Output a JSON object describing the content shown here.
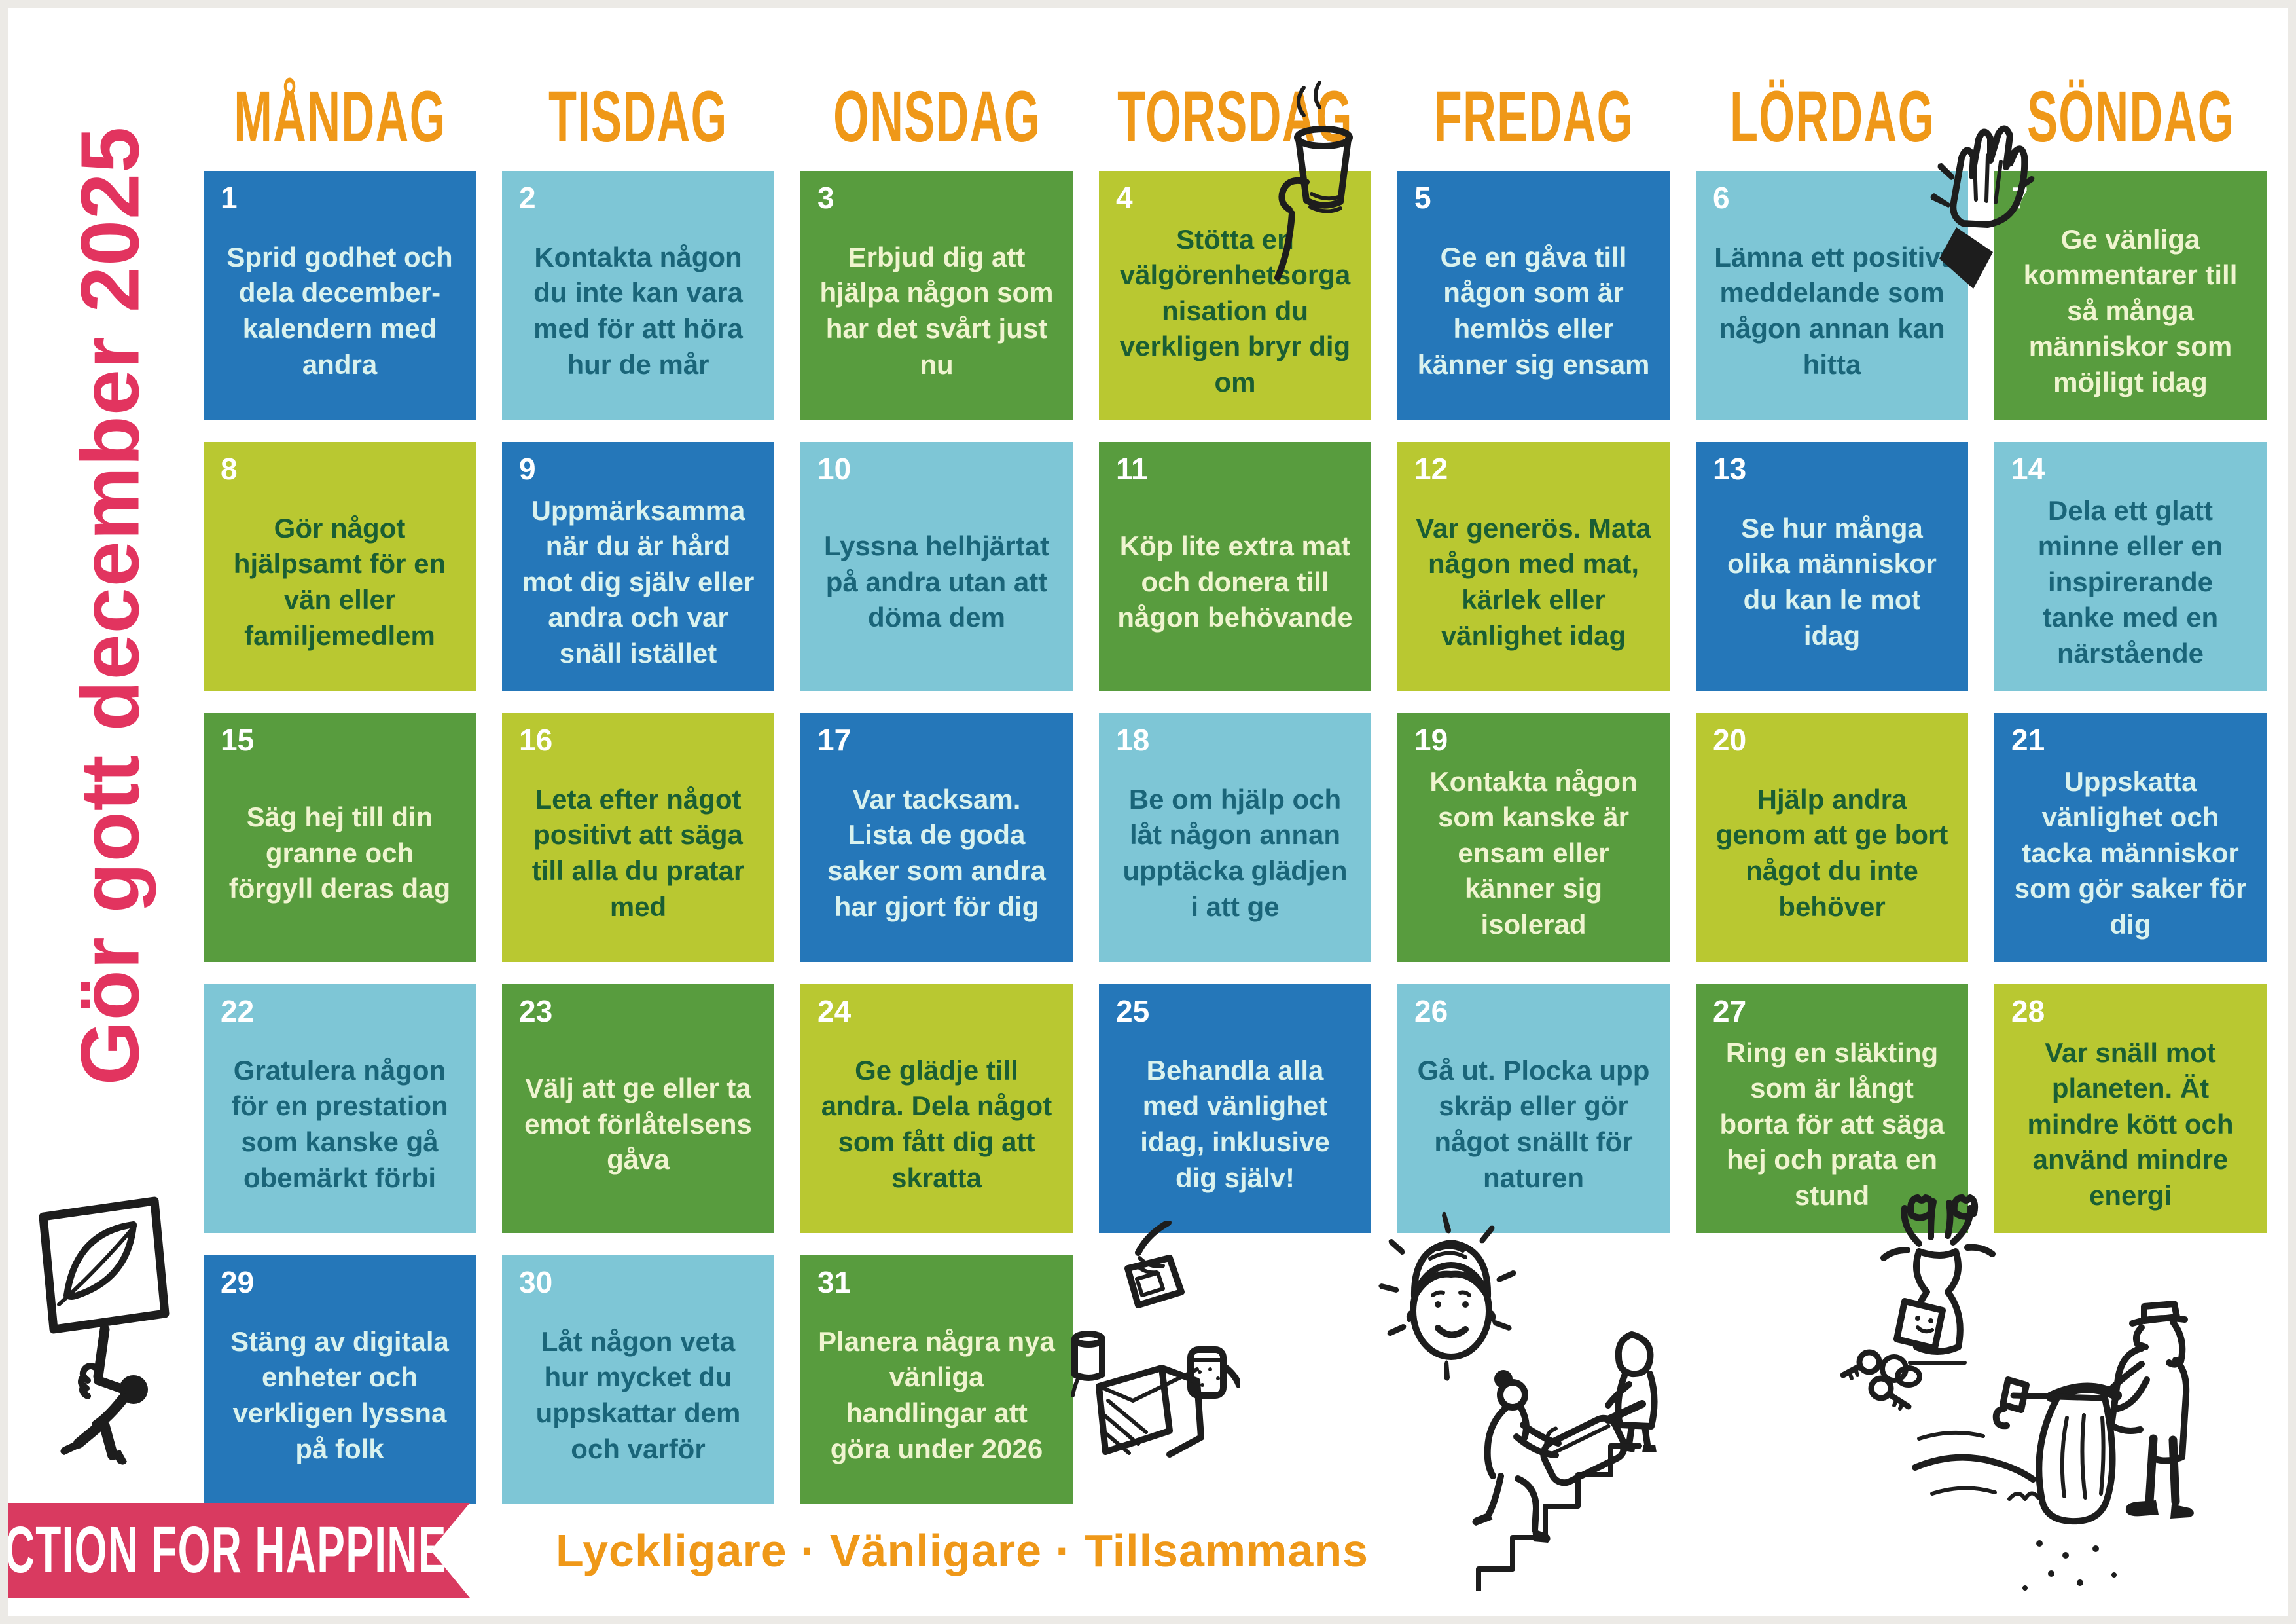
{
  "page": {
    "title_vertical": "Gör gott december 2025",
    "brand_banner": "ACTION FOR HAPPINESS",
    "tagline": "Lyckligare · Vänligare · Tillsammans"
  },
  "colors": {
    "blue": "#2577b9",
    "light_blue": "#7ec6d6",
    "green": "#589c3e",
    "lime": "#b9c831",
    "text_on_blue": "#d9f2ee",
    "text_on_light_blue": "#1a6579",
    "text_on_green": "#eff4cf",
    "text_on_lime": "#1a5e33",
    "day_number": "#ffffff",
    "orange": "#ef9818",
    "title_pink": "#e2345f",
    "banner_red": "#d93a60"
  },
  "weekdays": [
    "MÅNDAG",
    "TISDAG",
    "ONSDAG",
    "TORSDAG",
    "FREDAG",
    "LÖRDAG",
    "SÖNDAG"
  ],
  "calendar": {
    "cells": [
      {
        "day": 1,
        "color": "blue",
        "text": "Sprid godhet och dela december-kalendern med andra"
      },
      {
        "day": 2,
        "color": "light_blue",
        "text": "Kontakta någon du inte kan vara med för att höra hur de mår"
      },
      {
        "day": 3,
        "color": "green",
        "text": "Erbjud dig att hjälpa någon som har det svårt just nu"
      },
      {
        "day": 4,
        "color": "lime",
        "text": "Stötta en välgörenhetsorganisation du verkligen bryr dig om"
      },
      {
        "day": 5,
        "color": "blue",
        "text": "Ge en gåva till någon som är hemlös eller känner sig ensam"
      },
      {
        "day": 6,
        "color": "light_blue",
        "text": "Lämna ett positivt meddelande som någon annan kan hitta"
      },
      {
        "day": 7,
        "color": "green",
        "text": "Ge vänliga kommentarer till så många människor som möjligt idag"
      },
      {
        "day": 8,
        "color": "lime",
        "text": "Gör något hjälpsamt för en vän eller familjemedlem"
      },
      {
        "day": 9,
        "color": "blue",
        "text": "Uppmärksamma när du är hård mot dig själv eller andra och var snäll istället"
      },
      {
        "day": 10,
        "color": "light_blue",
        "text": "Lyssna helhjärtat på andra utan att döma dem"
      },
      {
        "day": 11,
        "color": "green",
        "text": "Köp lite extra mat och donera till någon behövande"
      },
      {
        "day": 12,
        "color": "lime",
        "text": "Var generös. Mata någon med mat, kärlek eller vänlighet idag"
      },
      {
        "day": 13,
        "color": "blue",
        "text": "Se hur många olika människor du kan le mot idag"
      },
      {
        "day": 14,
        "color": "light_blue",
        "text": "Dela ett glatt minne eller en inspirerande tanke med en närstående"
      },
      {
        "day": 15,
        "color": "green",
        "text": "Säg hej till din granne och förgyll deras dag"
      },
      {
        "day": 16,
        "color": "lime",
        "text": "Leta efter något positivt att säga till alla du pratar med"
      },
      {
        "day": 17,
        "color": "blue",
        "text": "Var tacksam. Lista de goda saker som andra har gjort för dig"
      },
      {
        "day": 18,
        "color": "light_blue",
        "text": "Be om hjälp och låt någon annan upptäcka glädjen i att ge"
      },
      {
        "day": 19,
        "color": "green",
        "text": "Kontakta någon som kanske är ensam eller känner sig isolerad"
      },
      {
        "day": 20,
        "color": "lime",
        "text": "Hjälp andra genom att ge bort något du inte behöver"
      },
      {
        "day": 21,
        "color": "blue",
        "text": "Uppskatta vänlighet och tacka människor som gör saker för dig"
      },
      {
        "day": 22,
        "color": "light_blue",
        "text": "Gratulera någon för en prestation som kanske gå obemärkt förbi"
      },
      {
        "day": 23,
        "color": "green",
        "text": "Välj att ge eller ta emot förlåtelsens gåva"
      },
      {
        "day": 24,
        "color": "lime",
        "text": "Ge glädje till andra. Dela något som fått dig att skratta"
      },
      {
        "day": 25,
        "color": "blue",
        "text": "Behandla alla med vänlighet idag, inklusive dig själv!"
      },
      {
        "day": 26,
        "color": "light_blue",
        "text": "Gå ut. Plocka upp skräp eller gör något snällt för naturen"
      },
      {
        "day": 27,
        "color": "green",
        "text": "Ring en släkting som är långt borta för att säga hej och prata en stund"
      },
      {
        "day": 28,
        "color": "lime",
        "text": "Var snäll mot planeten. Ät mindre kött och använd mindre energi"
      },
      {
        "day": 29,
        "color": "blue",
        "text": "Stäng av digitala enheter och verkligen lyssna på folk"
      },
      {
        "day": 30,
        "color": "light_blue",
        "text": "Låt någon veta hur mycket du uppskattar dem och varför"
      },
      {
        "day": 31,
        "color": "green",
        "text": "Planera några nya vänliga handlingar att göra under 2026"
      }
    ]
  },
  "illustrations": [
    "coffee-cup-hand",
    "high-five-hand",
    "leaf-placard",
    "donation-box",
    "smiling-face-sun",
    "helping-up-stairs",
    "keys",
    "flower-vase-note",
    "litter-picking"
  ]
}
